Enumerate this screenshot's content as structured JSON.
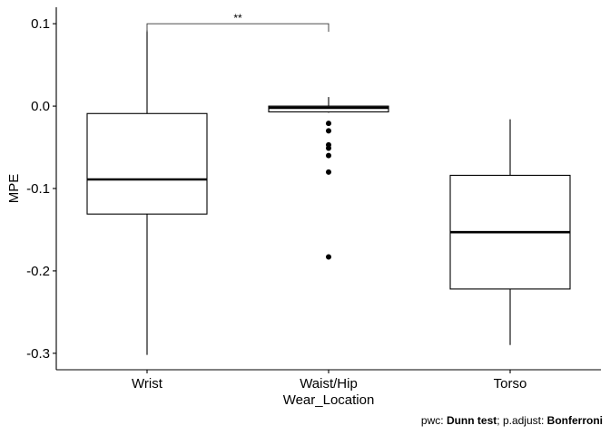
{
  "chart_data": {
    "type": "boxplot",
    "xlabel": "Wear_Location",
    "ylabel": "MPE",
    "ylim": [
      -0.32,
      0.12
    ],
    "yticks": [
      0.1,
      0.0,
      -0.1,
      -0.2,
      -0.3
    ],
    "ytick_labels": [
      "0.1",
      "0.0",
      "-0.1",
      "-0.2",
      "-0.3"
    ],
    "categories": [
      "Wrist",
      "Waist/Hip",
      "Torso"
    ],
    "boxes": [
      {
        "category": "Wrist",
        "whisker_low": -0.302,
        "q1": -0.131,
        "median": -0.089,
        "q3": -0.009,
        "whisker_high": 0.092,
        "outliers": []
      },
      {
        "category": "Waist/Hip",
        "whisker_low": -0.008,
        "q1": -0.007,
        "median": -0.002,
        "q3": 0.0,
        "whisker_high": 0.011,
        "outliers": [
          -0.021,
          -0.03,
          -0.047,
          -0.051,
          -0.06,
          -0.08,
          -0.183
        ]
      },
      {
        "category": "Torso",
        "whisker_low": -0.29,
        "q1": -0.222,
        "median": -0.153,
        "q3": -0.084,
        "whisker_high": -0.016,
        "outliers": []
      }
    ],
    "significance": [
      {
        "from": "Wrist",
        "to": "Waist/Hip",
        "label": "**",
        "y": 0.1
      }
    ],
    "caption": {
      "prefix": "pwc: ",
      "test": "Dunn test",
      "middle": "; p.adjust: ",
      "adjust": "Bonferroni"
    },
    "colors": {
      "box_fill": "#ffffff",
      "stroke": "#000000",
      "outlier": "#000000"
    },
    "grid": false
  }
}
